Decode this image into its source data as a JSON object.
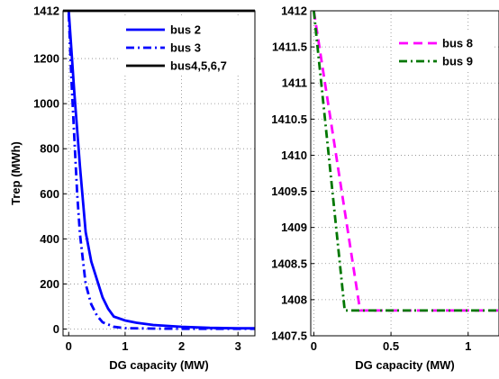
{
  "chart_data": [
    {
      "type": "line",
      "xlabel": "DG capacity (MW)",
      "ylabel": "Trep (MWh)",
      "xlim": [
        -0.1,
        3.3
      ],
      "ylim": [
        -30,
        1412
      ],
      "xticks": [
        0,
        1,
        2,
        3
      ],
      "yticks": [
        0,
        200,
        400,
        600,
        800,
        1000,
        1200,
        1412
      ],
      "grid": true,
      "legend": "top-right",
      "series": [
        {
          "name": "bus 2",
          "color": "#0000ff",
          "style": "solid",
          "x": [
            0,
            0.1,
            0.2,
            0.3,
            0.4,
            0.5,
            0.6,
            0.7,
            0.8,
            1.0,
            1.2,
            1.5,
            2.0,
            2.5,
            3.0,
            3.3
          ],
          "y": [
            1412,
            1050,
            720,
            430,
            300,
            220,
            140,
            90,
            55,
            38,
            28,
            18,
            10,
            5,
            3,
            3
          ]
        },
        {
          "name": "bus 3",
          "color": "#0000ff",
          "style": "dashdot",
          "x": [
            0,
            0.05,
            0.1,
            0.15,
            0.2,
            0.3,
            0.4,
            0.5,
            0.6,
            0.8,
            1.0,
            1.5,
            2.0,
            3.3
          ],
          "y": [
            1400,
            1100,
            850,
            600,
            420,
            200,
            110,
            60,
            30,
            10,
            4,
            2,
            1,
            1
          ]
        },
        {
          "name": "bus4,5,6,7",
          "color": "#000000",
          "style": "solid",
          "x": [
            -0.1,
            3.3
          ],
          "y": [
            1412,
            1412
          ]
        }
      ]
    },
    {
      "type": "line",
      "xlabel": "DG capacity (MW)",
      "ylabel": "",
      "xlim": [
        -0.02,
        1.2
      ],
      "ylim": [
        1407.5,
        1412
      ],
      "xticks": [
        0,
        0.5,
        1
      ],
      "xtick_labels": [
        "0",
        "0.5",
        "1"
      ],
      "yticks": [
        1407.5,
        1408,
        1408.5,
        1409,
        1409.5,
        1410,
        1410.5,
        1411,
        1411.5,
        1412
      ],
      "grid": true,
      "legend": "top-right",
      "series": [
        {
          "name": "bus 8",
          "color": "#ff00ff",
          "style": "dashed",
          "x": [
            0,
            0.3,
            1.2
          ],
          "y": [
            1412,
            1407.85,
            1407.85
          ]
        },
        {
          "name": "bus 9",
          "color": "#007700",
          "style": "dashdot",
          "x": [
            0,
            0.2,
            1.2
          ],
          "y": [
            1412,
            1407.85,
            1407.85
          ]
        }
      ]
    }
  ]
}
